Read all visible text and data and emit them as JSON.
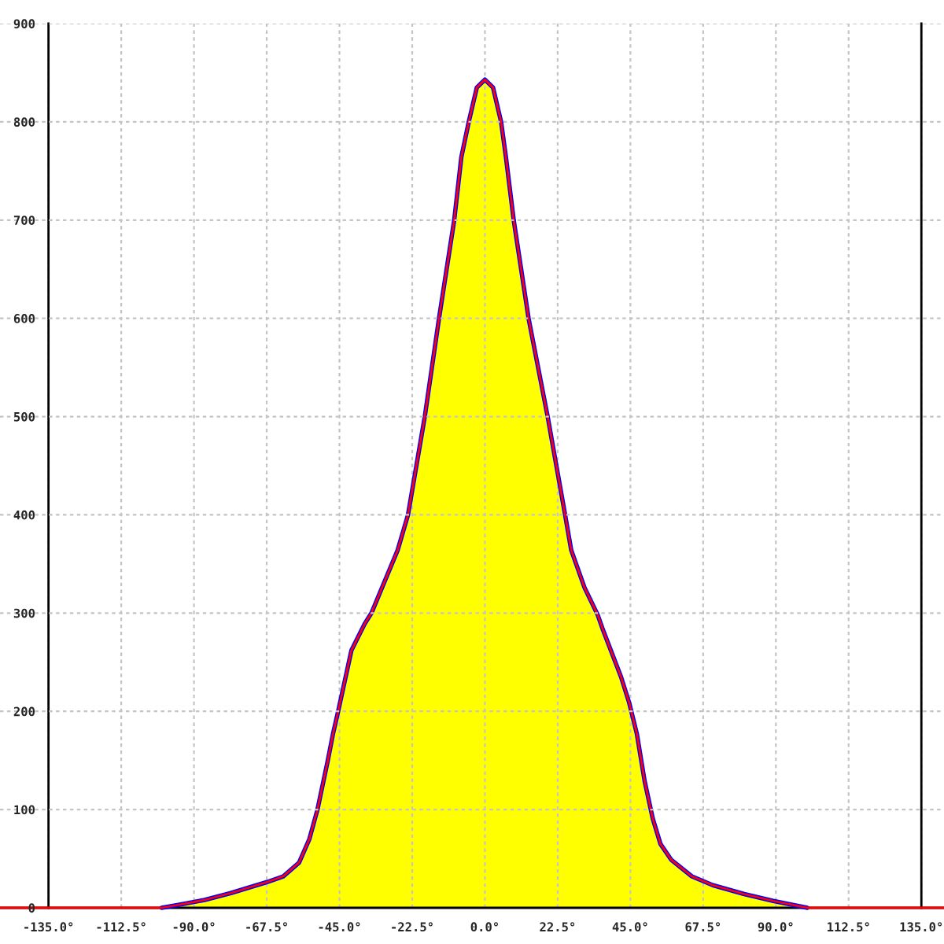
{
  "chart_data": {
    "type": "line",
    "series": [
      {
        "color": "#0000ff",
        "x": [
          -100,
          -94.8,
          -86.7,
          -78.6,
          -67.6,
          -62.4,
          -57.5,
          -54.3,
          -51.8,
          -48.6,
          -47,
          -45.4,
          -41.3,
          -37.2,
          -35.1,
          -27,
          -23.8,
          -18.6,
          -14.2,
          -9.5,
          -7.3,
          -5,
          -2.5,
          0,
          2.5,
          5,
          6.5,
          8.9,
          13.5,
          19.4,
          24.8,
          26.7,
          30.8,
          34.9,
          36.5,
          42.1,
          44.6,
          47,
          49.4,
          51.9,
          54.3,
          57.6,
          64,
          70.5,
          80.2,
          89.2,
          99.7
        ],
        "values": [
          0,
          3,
          8,
          15,
          26,
          32,
          46,
          70,
          100,
          150,
          177,
          200,
          262,
          289,
          300,
          364,
          400,
          500,
          600,
          700,
          764,
          800,
          835,
          843,
          835,
          800,
          764,
          700,
          600,
          500,
          400,
          364,
          326,
          298,
          283,
          235,
          209,
          177,
          129,
          91,
          65,
          49,
          32,
          23,
          14,
          7,
          0
        ]
      },
      {
        "color": "#ff0000",
        "x": [
          -150,
          -100,
          -94.8,
          -86.7,
          -78.6,
          -67.6,
          -62.4,
          -57.5,
          -54.3,
          -51.8,
          -48.6,
          -47,
          -45.4,
          -41.3,
          -37.2,
          -35.1,
          -27,
          -23.8,
          -18.6,
          -14.2,
          -9.5,
          -7.3,
          -5,
          -2.5,
          0,
          2.5,
          5,
          6.5,
          8.9,
          13.5,
          19.4,
          24.8,
          26.7,
          30.8,
          34.9,
          36.5,
          42.1,
          44.6,
          47,
          49.4,
          51.9,
          54.3,
          57.6,
          64,
          70.5,
          80.2,
          89.2,
          99.7,
          142
        ],
        "values": [
          0,
          0,
          3,
          8,
          15,
          26,
          32,
          46,
          70,
          100,
          150,
          177,
          200,
          262,
          289,
          300,
          364,
          400,
          500,
          600,
          700,
          764,
          800,
          835,
          843,
          835,
          800,
          764,
          700,
          600,
          500,
          400,
          364,
          326,
          298,
          283,
          235,
          209,
          177,
          129,
          91,
          65,
          49,
          32,
          23,
          14,
          7,
          0,
          0
        ]
      },
      {
        "type": "area",
        "color": "#ffff00",
        "x": [
          -97,
          -94.8,
          -86.7,
          -78.6,
          -67.6,
          -62.4,
          -57.5,
          -54.3,
          -51.8,
          -48.6,
          -47,
          -45.4,
          -41.3,
          -37.2,
          -35.1,
          -27,
          -23.8,
          -18.6,
          -14.2,
          -9.5,
          -7.3,
          -5,
          -2.5,
          0,
          2.5,
          5,
          6.5,
          8.9,
          13.5,
          19.4,
          24.8,
          26.7,
          30.8,
          34.9,
          36.5,
          42.1,
          44.6,
          47,
          49.4,
          51.9,
          54.3,
          57.6,
          64,
          70.5,
          80.2,
          89.2,
          95
        ],
        "values": [
          0,
          3,
          8,
          15,
          26,
          32,
          46,
          70,
          100,
          150,
          177,
          200,
          262,
          289,
          300,
          364,
          400,
          500,
          600,
          700,
          764,
          800,
          835,
          843,
          835,
          800,
          764,
          700,
          600,
          500,
          400,
          364,
          326,
          298,
          283,
          235,
          209,
          177,
          129,
          91,
          65,
          49,
          32,
          23,
          14,
          7,
          0
        ]
      }
    ],
    "xlim": [
      -150,
      142
    ],
    "ylim": [
      0,
      900
    ],
    "xticks": [
      {
        "value": -135,
        "label": "-135.0°"
      },
      {
        "value": -112.5,
        "label": "-112.5°"
      },
      {
        "value": -90,
        "label": "-90.0°"
      },
      {
        "value": -67.5,
        "label": "-67.5°"
      },
      {
        "value": -45,
        "label": "-45.0°"
      },
      {
        "value": -22.5,
        "label": "-22.5°"
      },
      {
        "value": 0,
        "label": "0.0°"
      },
      {
        "value": 22.5,
        "label": "22.5°"
      },
      {
        "value": 45,
        "label": "45.0°"
      },
      {
        "value": 67.5,
        "label": "67.5°"
      },
      {
        "value": 90,
        "label": "90.0°"
      },
      {
        "value": 112.5,
        "label": "112.5°"
      },
      {
        "value": 135,
        "label": "135.0°"
      }
    ],
    "yticks": [
      0,
      100,
      200,
      300,
      400,
      500,
      600,
      700,
      800,
      900
    ],
    "grid": true
  }
}
